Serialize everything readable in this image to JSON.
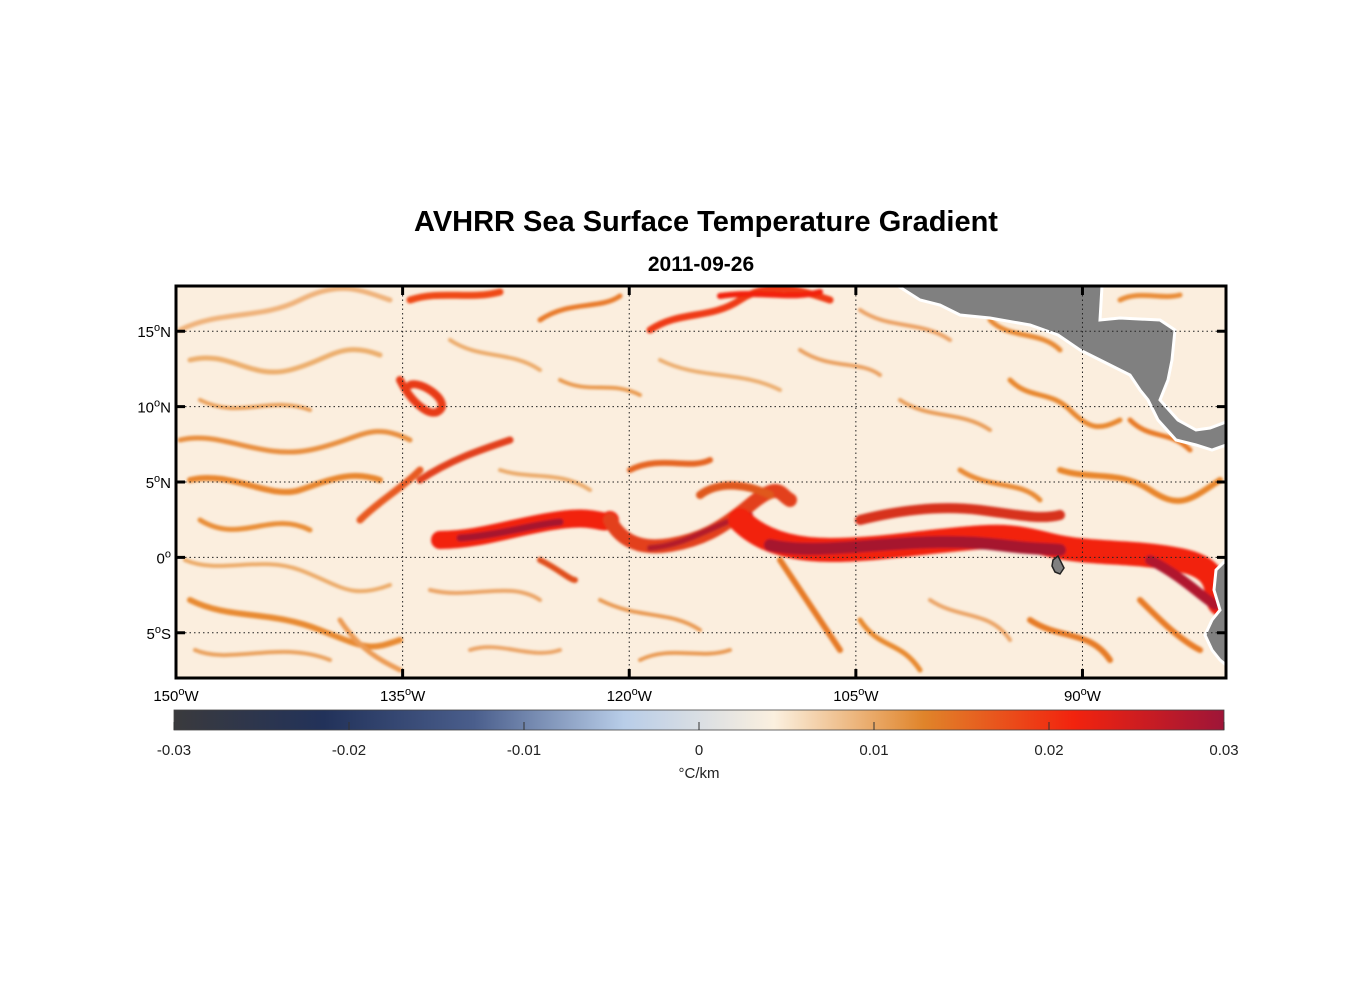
{
  "title": "AVHRR Sea Surface Temperature Gradient",
  "subtitle": "2011-09-26",
  "map": {
    "lon_range": [
      -150,
      -80.5
    ],
    "lat_range": [
      -8,
      18
    ],
    "lon_ticks": [
      {
        "value": -150,
        "num": "150",
        "hemi": "W"
      },
      {
        "value": -135,
        "num": "135",
        "hemi": "W"
      },
      {
        "value": -120,
        "num": "120",
        "hemi": "W"
      },
      {
        "value": -105,
        "num": "105",
        "hemi": "W"
      },
      {
        "value": -90,
        "num": "90",
        "hemi": "W"
      }
    ],
    "lat_ticks": [
      {
        "value": 15,
        "num": "15",
        "hemi": "N"
      },
      {
        "value": 10,
        "num": "10",
        "hemi": "N"
      },
      {
        "value": 5,
        "num": "5",
        "hemi": "N"
      },
      {
        "value": 0,
        "num": "0",
        "hemi": ""
      },
      {
        "value": -5,
        "num": "5",
        "hemi": "S"
      }
    ],
    "degree_symbol": "o",
    "grid": "dotted",
    "land_color": "#808080",
    "ocean_background": "#fbeede"
  },
  "colorbar": {
    "min": -0.03,
    "max": 0.03,
    "ticks": [
      "-0.03",
      "-0.02",
      "-0.01",
      "0",
      "0.01",
      "0.02",
      "0.03"
    ],
    "label": "°C/km",
    "colormap": [
      "#3a3a3d",
      "#22325a",
      "#4a5e8c",
      "#b8cde8",
      "#fbf0df",
      "#e0842a",
      "#f2230e",
      "#9e1538"
    ]
  }
}
